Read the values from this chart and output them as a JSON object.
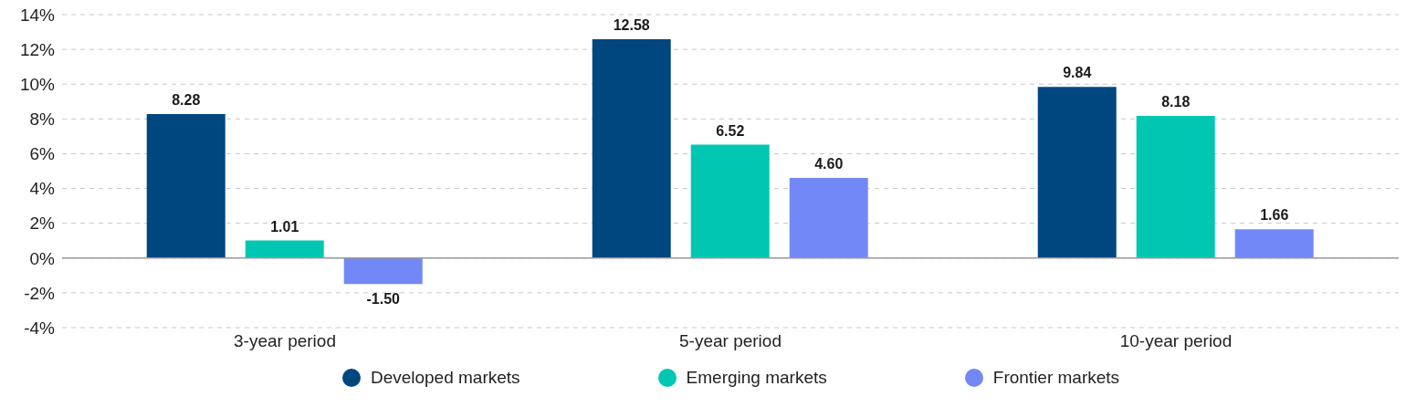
{
  "chart_data": {
    "type": "bar",
    "categories": [
      "3-year period",
      "5-year period",
      "10-year period"
    ],
    "series": [
      {
        "name": "Developed markets",
        "color": "#00467f",
        "values": [
          8.28,
          12.58,
          9.84
        ],
        "value_labels": [
          "8.28",
          "12.58",
          "9.84"
        ]
      },
      {
        "name": "Emerging markets",
        "color": "#00c7b1",
        "values": [
          1.01,
          6.52,
          8.18
        ],
        "value_labels": [
          "1.01",
          "6.52",
          "8.18"
        ]
      },
      {
        "name": "Frontier markets",
        "color": "#7388f7",
        "values": [
          -1.5,
          4.6,
          1.66
        ],
        "value_labels": [
          "-1.50",
          "4.60",
          "1.66"
        ]
      }
    ],
    "ylim": [
      -4,
      14
    ],
    "yticks": [
      {
        "value": -4,
        "label": "-4%"
      },
      {
        "value": -2,
        "label": "-2%"
      },
      {
        "value": 0,
        "label": "0%"
      },
      {
        "value": 2,
        "label": "2%"
      },
      {
        "value": 4,
        "label": "4%"
      },
      {
        "value": 6,
        "label": "6%"
      },
      {
        "value": 8,
        "label": "8%"
      },
      {
        "value": 10,
        "label": "10%"
      },
      {
        "value": 12,
        "label": "12%"
      },
      {
        "value": 14,
        "label": "14%"
      }
    ],
    "grid": "y",
    "legend": "bottom"
  }
}
